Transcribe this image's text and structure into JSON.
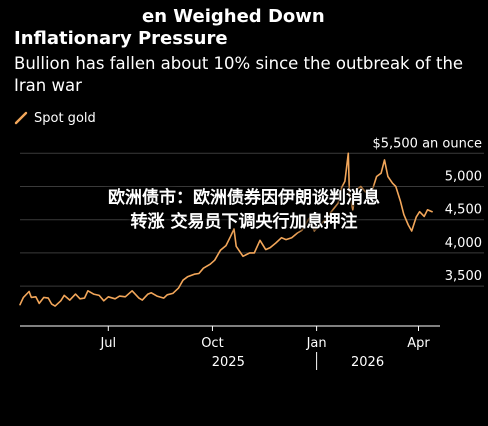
{
  "headline": {
    "line1": "en Weighed Down",
    "line2": "Inflationary Pressure"
  },
  "subtitle": "Bullion has fallen about 10% since the outbreak of the Iran war",
  "overlay": {
    "line1": "欧洲债市：欧洲债券因伊朗谈判消息",
    "line2": "转涨 交易员下调央行加息押注"
  },
  "colors": {
    "background": "#000000",
    "series": "#f2a65a",
    "axis": "#ffffff",
    "grid": "#3a3a3a"
  },
  "chart_data": {
    "type": "line",
    "title": "",
    "xlabel": "",
    "ylabel": "",
    "legend": "top-left",
    "grid": true,
    "ylim": [
      2900,
      5700
    ],
    "xlim": [
      "2025-04-14",
      "2026-04-20"
    ],
    "y_ticks": [
      {
        "value": 5500,
        "label": "$5,500 an ounce"
      },
      {
        "value": 5000,
        "label": "5,000"
      },
      {
        "value": 4500,
        "label": "4,500"
      },
      {
        "value": 4000,
        "label": "4,000"
      },
      {
        "value": 3500,
        "label": "3,500"
      }
    ],
    "x_ticks": [
      {
        "date": "2025-07-01",
        "label": "Jul"
      },
      {
        "date": "2025-10-01",
        "label": "Oct"
      },
      {
        "date": "2026-01-01",
        "label": "Jan"
      },
      {
        "date": "2026-04-01",
        "label": "Apr"
      }
    ],
    "year_labels": [
      {
        "date": "2025-10-15",
        "label": "2025"
      },
      {
        "date": "2026-02-15",
        "label": "2026"
      }
    ],
    "year_divider": "2026-01-01",
    "series": [
      {
        "name": "Spot gold",
        "color": "#f2a65a",
        "points": [
          [
            "2025-04-14",
            3220
          ],
          [
            "2025-04-17",
            3330
          ],
          [
            "2025-04-22",
            3420
          ],
          [
            "2025-04-24",
            3330
          ],
          [
            "2025-04-28",
            3340
          ],
          [
            "2025-05-01",
            3240
          ],
          [
            "2025-05-05",
            3330
          ],
          [
            "2025-05-09",
            3320
          ],
          [
            "2025-05-12",
            3230
          ],
          [
            "2025-05-15",
            3200
          ],
          [
            "2025-05-20",
            3280
          ],
          [
            "2025-05-23",
            3360
          ],
          [
            "2025-05-28",
            3290
          ],
          [
            "2025-06-02",
            3380
          ],
          [
            "2025-06-06",
            3310
          ],
          [
            "2025-06-10",
            3320
          ],
          [
            "2025-06-13",
            3430
          ],
          [
            "2025-06-18",
            3380
          ],
          [
            "2025-06-23",
            3360
          ],
          [
            "2025-06-27",
            3280
          ],
          [
            "2025-07-01",
            3340
          ],
          [
            "2025-07-07",
            3310
          ],
          [
            "2025-07-11",
            3350
          ],
          [
            "2025-07-16",
            3340
          ],
          [
            "2025-07-22",
            3430
          ],
          [
            "2025-07-28",
            3320
          ],
          [
            "2025-07-31",
            3290
          ],
          [
            "2025-08-05",
            3380
          ],
          [
            "2025-08-08",
            3400
          ],
          [
            "2025-08-13",
            3350
          ],
          [
            "2025-08-19",
            3320
          ],
          [
            "2025-08-22",
            3370
          ],
          [
            "2025-08-27",
            3390
          ],
          [
            "2025-09-01",
            3470
          ],
          [
            "2025-09-05",
            3590
          ],
          [
            "2025-09-09",
            3640
          ],
          [
            "2025-09-15",
            3680
          ],
          [
            "2025-09-19",
            3690
          ],
          [
            "2025-09-23",
            3770
          ],
          [
            "2025-09-29",
            3830
          ],
          [
            "2025-10-03",
            3890
          ],
          [
            "2025-10-08",
            4040
          ],
          [
            "2025-10-13",
            4110
          ],
          [
            "2025-10-17",
            4250
          ],
          [
            "2025-10-20",
            4360
          ],
          [
            "2025-10-22",
            4100
          ],
          [
            "2025-10-28",
            3950
          ],
          [
            "2025-11-03",
            4000
          ],
          [
            "2025-11-07",
            4000
          ],
          [
            "2025-11-12",
            4190
          ],
          [
            "2025-11-17",
            4050
          ],
          [
            "2025-11-21",
            4080
          ],
          [
            "2025-11-26",
            4150
          ],
          [
            "2025-12-01",
            4230
          ],
          [
            "2025-12-05",
            4200
          ],
          [
            "2025-12-10",
            4230
          ],
          [
            "2025-12-15",
            4300
          ],
          [
            "2025-12-19",
            4340
          ],
          [
            "2025-12-24",
            4480
          ],
          [
            "2025-12-26",
            4530
          ],
          [
            "2025-12-30",
            4330
          ],
          [
            "2026-01-05",
            4440
          ],
          [
            "2026-01-09",
            4500
          ],
          [
            "2026-01-14",
            4620
          ],
          [
            "2026-01-20",
            4750
          ],
          [
            "2026-01-23",
            4980
          ],
          [
            "2026-01-26",
            5080
          ],
          [
            "2026-01-29",
            5500
          ],
          [
            "2026-01-30",
            4900
          ],
          [
            "2026-02-02",
            4650
          ],
          [
            "2026-02-05",
            4950
          ],
          [
            "2026-02-09",
            5000
          ],
          [
            "2026-02-13",
            4920
          ],
          [
            "2026-02-18",
            4880
          ],
          [
            "2026-02-23",
            5150
          ],
          [
            "2026-02-27",
            5200
          ],
          [
            "2026-03-02",
            5400
          ],
          [
            "2026-03-05",
            5150
          ],
          [
            "2026-03-09",
            5050
          ],
          [
            "2026-03-12",
            5000
          ],
          [
            "2026-03-16",
            4780
          ],
          [
            "2026-03-19",
            4580
          ],
          [
            "2026-03-23",
            4420
          ],
          [
            "2026-03-26",
            4330
          ],
          [
            "2026-03-30",
            4540
          ],
          [
            "2026-04-02",
            4620
          ],
          [
            "2026-04-06",
            4550
          ],
          [
            "2026-04-09",
            4650
          ],
          [
            "2026-04-13",
            4620
          ]
        ]
      }
    ]
  }
}
